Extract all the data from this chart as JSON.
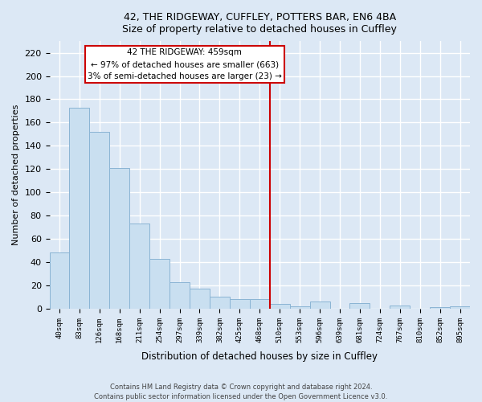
{
  "title": "42, THE RIDGEWAY, CUFFLEY, POTTERS BAR, EN6 4BA",
  "subtitle": "Size of property relative to detached houses in Cuffley",
  "xlabel": "Distribution of detached houses by size in Cuffley",
  "ylabel": "Number of detached properties",
  "bar_labels": [
    "40sqm",
    "83sqm",
    "126sqm",
    "168sqm",
    "211sqm",
    "254sqm",
    "297sqm",
    "339sqm",
    "382sqm",
    "425sqm",
    "468sqm",
    "510sqm",
    "553sqm",
    "596sqm",
    "639sqm",
    "681sqm",
    "724sqm",
    "767sqm",
    "810sqm",
    "852sqm",
    "895sqm"
  ],
  "bar_values": [
    48,
    173,
    152,
    121,
    73,
    43,
    23,
    17,
    10,
    8,
    8,
    4,
    2,
    6,
    0,
    5,
    0,
    3,
    0,
    1,
    2
  ],
  "bar_color": "#c9dff0",
  "bar_edge_color": "#8ab4d4",
  "highlight_line_color": "#cc0000",
  "annotation_title": "42 THE RIDGEWAY: 459sqm",
  "annotation_line1": "← 97% of detached houses are smaller (663)",
  "annotation_line2": "3% of semi-detached houses are larger (23) →",
  "annotation_box_color": "#ffffff",
  "annotation_box_edge_color": "#cc0000",
  "footer_line1": "Contains HM Land Registry data © Crown copyright and database right 2024.",
  "footer_line2": "Contains public sector information licensed under the Open Government Licence v3.0.",
  "ylim": [
    0,
    230
  ],
  "yticks": [
    0,
    20,
    40,
    60,
    80,
    100,
    120,
    140,
    160,
    180,
    200,
    220
  ],
  "background_color": "#dce8f5",
  "grid_color": "#ffffff",
  "spine_color": "#b0c4d8"
}
